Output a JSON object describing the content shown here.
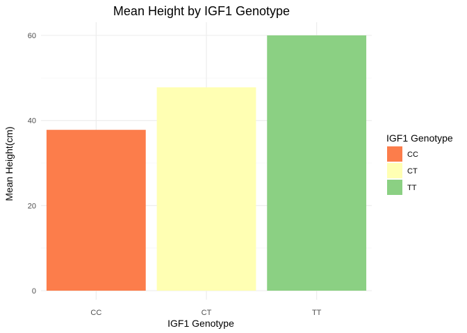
{
  "chart_data": {
    "type": "bar",
    "title": "Mean Height by IGF1 Genotype",
    "xlabel": "IGF1 Genotype",
    "ylabel": "Mean Height(cm)",
    "categories": [
      "CC",
      "CT",
      "TT"
    ],
    "values": [
      37.8,
      47.8,
      60
    ],
    "colors": [
      "#fc7d4b",
      "#ffffb3",
      "#8bd083"
    ],
    "ylim": [
      0,
      60
    ],
    "yticks": [
      "0",
      "20",
      "40",
      "60"
    ],
    "grid": true,
    "legend": {
      "title": "IGF1 Genotype",
      "placement": "right",
      "entries": [
        "CC",
        "CT",
        "TT"
      ]
    }
  }
}
